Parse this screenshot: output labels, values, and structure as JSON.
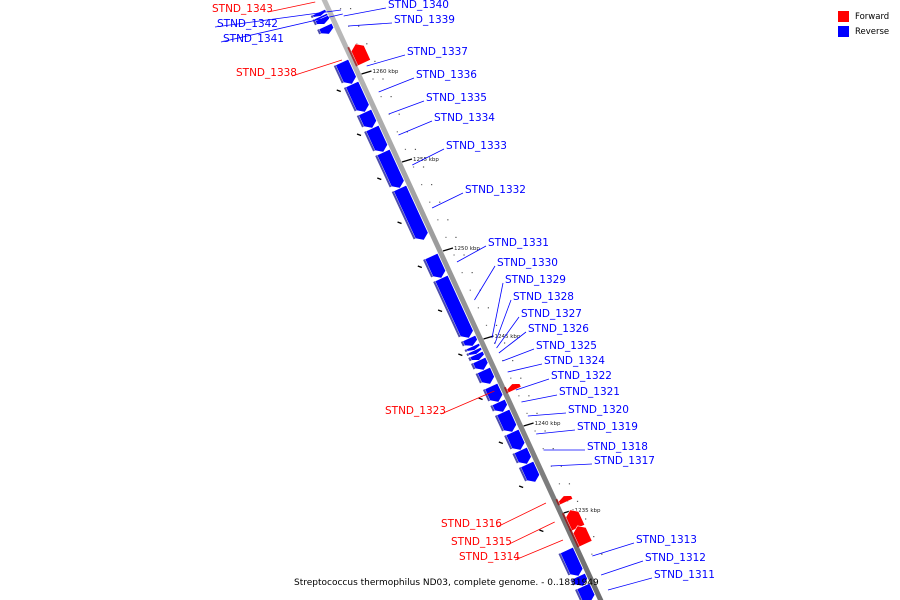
{
  "caption": "Streptococcus thermophilus ND03, complete genome. - 0..1831949",
  "legend": {
    "forward_label": "Forward",
    "reverse_label": "Reverse",
    "forward_color": "#ff0000",
    "reverse_color": "#0000ff"
  },
  "scale_ticks": [
    "1260 kbp",
    "1255 kbp",
    "1250 kbp",
    "1245 kbp",
    "1240 kbp",
    "1235 kbp"
  ],
  "genes": [
    {
      "id": "STND_1343",
      "strand": "forward"
    },
    {
      "id": "STND_1342",
      "strand": "reverse"
    },
    {
      "id": "STND_1341",
      "strand": "reverse"
    },
    {
      "id": "STND_1340",
      "strand": "reverse"
    },
    {
      "id": "STND_1339",
      "strand": "reverse"
    },
    {
      "id": "STND_1338",
      "strand": "forward"
    },
    {
      "id": "STND_1337",
      "strand": "reverse"
    },
    {
      "id": "STND_1336",
      "strand": "reverse"
    },
    {
      "id": "STND_1335",
      "strand": "reverse"
    },
    {
      "id": "STND_1334",
      "strand": "reverse"
    },
    {
      "id": "STND_1333",
      "strand": "reverse"
    },
    {
      "id": "STND_1332",
      "strand": "reverse"
    },
    {
      "id": "STND_1331",
      "strand": "reverse"
    },
    {
      "id": "STND_1330",
      "strand": "reverse"
    },
    {
      "id": "STND_1329",
      "strand": "reverse"
    },
    {
      "id": "STND_1328",
      "strand": "reverse"
    },
    {
      "id": "STND_1327",
      "strand": "reverse"
    },
    {
      "id": "STND_1326",
      "strand": "reverse"
    },
    {
      "id": "STND_1325",
      "strand": "reverse"
    },
    {
      "id": "STND_1324",
      "strand": "reverse"
    },
    {
      "id": "STND_1323",
      "strand": "forward"
    },
    {
      "id": "STND_1322",
      "strand": "reverse"
    },
    {
      "id": "STND_1321",
      "strand": "reverse"
    },
    {
      "id": "STND_1320",
      "strand": "reverse"
    },
    {
      "id": "STND_1319",
      "strand": "reverse"
    },
    {
      "id": "STND_1318",
      "strand": "reverse"
    },
    {
      "id": "STND_1317",
      "strand": "reverse"
    },
    {
      "id": "STND_1316",
      "strand": "forward"
    },
    {
      "id": "STND_1315",
      "strand": "forward"
    },
    {
      "id": "STND_1314",
      "strand": "forward"
    },
    {
      "id": "STND_1313",
      "strand": "reverse"
    },
    {
      "id": "STND_1312",
      "strand": "reverse"
    },
    {
      "id": "STND_1311",
      "strand": "reverse"
    }
  ]
}
